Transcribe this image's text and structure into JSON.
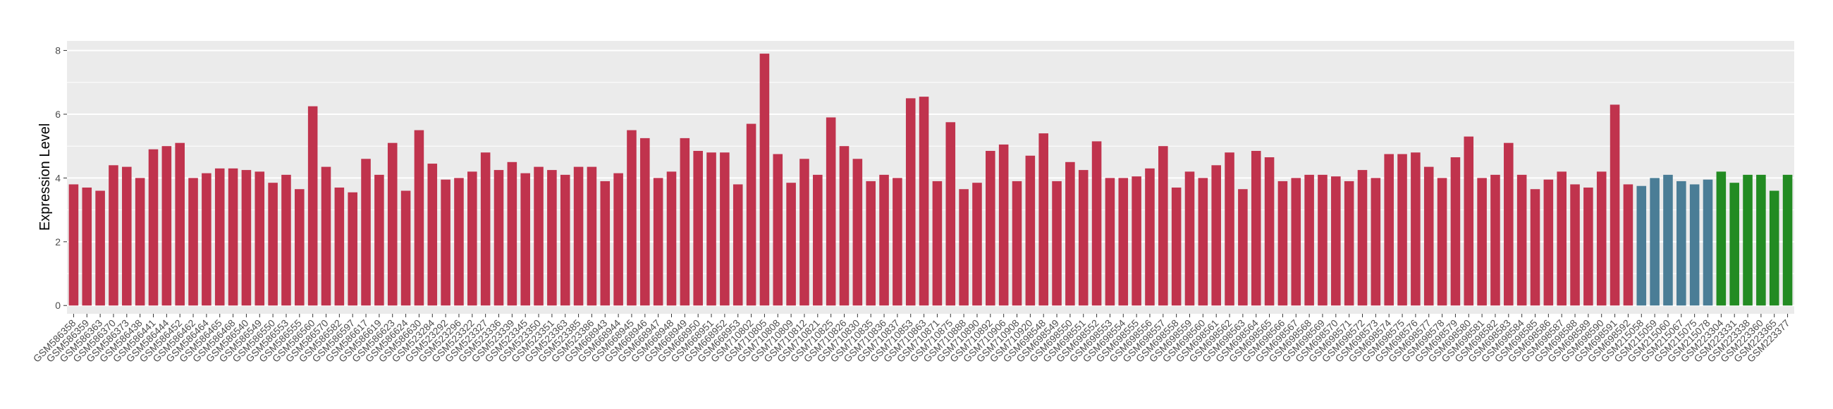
{
  "chart_data": {
    "type": "bar",
    "y_label": "Expression Level",
    "categories": [
      "GSM586358",
      "GSM586359",
      "GSM586363",
      "GSM586370",
      "GSM586373",
      "GSM586438",
      "GSM586441",
      "GSM586444",
      "GSM586452",
      "GSM586462",
      "GSM586464",
      "GSM586465",
      "GSM586468",
      "GSM586540",
      "GSM586549",
      "GSM586550",
      "GSM586553",
      "GSM586555",
      "GSM586560",
      "GSM586570",
      "GSM586582",
      "GSM586597",
      "GSM586617",
      "GSM586619",
      "GSM586623",
      "GSM586624",
      "GSM586630",
      "GSM523284",
      "GSM523292",
      "GSM523296",
      "GSM523322",
      "GSM523327",
      "GSM523336",
      "GSM523339",
      "GSM523345",
      "GSM523350",
      "GSM523351",
      "GSM523363",
      "GSM523385",
      "GSM523386",
      "GSM668943",
      "GSM668944",
      "GSM668945",
      "GSM668946",
      "GSM668947",
      "GSM668948",
      "GSM668949",
      "GSM668950",
      "GSM668951",
      "GSM668952",
      "GSM668953",
      "GSM710802",
      "GSM710805",
      "GSM710808",
      "GSM710809",
      "GSM710812",
      "GSM710821",
      "GSM710825",
      "GSM710826",
      "GSM710830",
      "GSM710835",
      "GSM710836",
      "GSM710837",
      "GSM710853",
      "GSM710863",
      "GSM710871",
      "GSM710875",
      "GSM710888",
      "GSM710890",
      "GSM710892",
      "GSM710906",
      "GSM710908",
      "GSM710920",
      "GSM698548",
      "GSM698549",
      "GSM698550",
      "GSM698551",
      "GSM698552",
      "GSM698553",
      "GSM698554",
      "GSM698555",
      "GSM698556",
      "GSM698557",
      "GSM698558",
      "GSM698559",
      "GSM698560",
      "GSM698561",
      "GSM698562",
      "GSM698563",
      "GSM698564",
      "GSM698565",
      "GSM698566",
      "GSM698567",
      "GSM698568",
      "GSM698569",
      "GSM698570",
      "GSM698571",
      "GSM698572",
      "GSM698573",
      "GSM698574",
      "GSM698575",
      "GSM698576",
      "GSM698577",
      "GSM698578",
      "GSM698579",
      "GSM698580",
      "GSM698581",
      "GSM698582",
      "GSM698583",
      "GSM698584",
      "GSM698585",
      "GSM698586",
      "GSM698587",
      "GSM698588",
      "GSM698589",
      "GSM698590",
      "GSM698591",
      "GSM698592",
      "GSM215058",
      "GSM215059",
      "GSM215060",
      "GSM215067",
      "GSM215075",
      "GSM215078",
      "GSM223304",
      "GSM223331",
      "GSM223338",
      "GSM223360",
      "GSM223365",
      "GSM223377"
    ],
    "values": [
      3.8,
      3.7,
      3.6,
      4.4,
      4.35,
      4.0,
      4.9,
      5.0,
      5.1,
      4.0,
      4.15,
      4.3,
      4.3,
      4.25,
      4.2,
      3.85,
      4.1,
      3.65,
      6.25,
      4.35,
      3.7,
      3.55,
      4.6,
      4.1,
      5.1,
      3.6,
      5.5,
      4.45,
      3.95,
      4.0,
      4.2,
      4.8,
      4.25,
      4.5,
      4.15,
      4.35,
      4.25,
      4.1,
      4.35,
      4.35,
      3.9,
      4.15,
      5.5,
      5.25,
      4.0,
      4.2,
      5.25,
      4.85,
      4.8,
      4.8,
      3.8,
      5.7,
      7.9,
      4.75,
      3.85,
      4.6,
      4.1,
      5.9,
      5.0,
      4.6,
      3.9,
      4.1,
      4.0,
      6.5,
      6.55,
      3.9,
      5.75,
      3.65,
      3.85,
      4.85,
      5.05,
      3.9,
      4.7,
      5.4,
      3.9,
      4.5,
      4.25,
      5.15,
      4.0,
      4.0,
      4.05,
      4.3,
      5.0,
      3.7,
      4.2,
      4.0,
      4.4,
      4.8,
      3.65,
      4.85,
      4.65,
      3.9,
      4.0,
      4.1,
      4.1,
      4.05,
      3.9,
      4.25,
      4.0,
      4.75,
      4.75,
      4.8,
      4.35,
      4.0,
      4.65,
      5.3,
      4.0,
      4.1,
      5.1,
      4.1,
      3.65,
      3.95,
      4.2,
      3.8,
      3.7,
      4.2,
      6.3,
      3.8,
      3.75,
      4.0,
      4.1,
      3.9,
      3.8,
      3.95,
      4.2,
      3.85,
      4.1,
      4.1,
      3.6,
      4.1
    ],
    "colors": [
      "#c0334d",
      "#c0334d",
      "#c0334d",
      "#c0334d",
      "#c0334d",
      "#c0334d",
      "#c0334d",
      "#c0334d",
      "#c0334d",
      "#c0334d",
      "#c0334d",
      "#c0334d",
      "#c0334d",
      "#c0334d",
      "#c0334d",
      "#c0334d",
      "#c0334d",
      "#c0334d",
      "#c0334d",
      "#c0334d",
      "#c0334d",
      "#c0334d",
      "#c0334d",
      "#c0334d",
      "#c0334d",
      "#c0334d",
      "#c0334d",
      "#c0334d",
      "#c0334d",
      "#c0334d",
      "#c0334d",
      "#c0334d",
      "#c0334d",
      "#c0334d",
      "#c0334d",
      "#c0334d",
      "#c0334d",
      "#c0334d",
      "#c0334d",
      "#c0334d",
      "#c0334d",
      "#c0334d",
      "#c0334d",
      "#c0334d",
      "#c0334d",
      "#c0334d",
      "#c0334d",
      "#c0334d",
      "#c0334d",
      "#c0334d",
      "#c0334d",
      "#c0334d",
      "#c0334d",
      "#c0334d",
      "#c0334d",
      "#c0334d",
      "#c0334d",
      "#c0334d",
      "#c0334d",
      "#c0334d",
      "#c0334d",
      "#c0334d",
      "#c0334d",
      "#c0334d",
      "#c0334d",
      "#c0334d",
      "#c0334d",
      "#c0334d",
      "#c0334d",
      "#c0334d",
      "#c0334d",
      "#c0334d",
      "#c0334d",
      "#c0334d",
      "#c0334d",
      "#c0334d",
      "#c0334d",
      "#c0334d",
      "#c0334d",
      "#c0334d",
      "#c0334d",
      "#c0334d",
      "#c0334d",
      "#c0334d",
      "#c0334d",
      "#c0334d",
      "#c0334d",
      "#c0334d",
      "#c0334d",
      "#c0334d",
      "#c0334d",
      "#c0334d",
      "#c0334d",
      "#c0334d",
      "#c0334d",
      "#c0334d",
      "#c0334d",
      "#c0334d",
      "#c0334d",
      "#c0334d",
      "#c0334d",
      "#c0334d",
      "#c0334d",
      "#c0334d",
      "#c0334d",
      "#c0334d",
      "#c0334d",
      "#c0334d",
      "#c0334d",
      "#c0334d",
      "#c0334d",
      "#c0334d",
      "#c0334d",
      "#c0334d",
      "#c0334d",
      "#c0334d",
      "#c0334d",
      "#c0334d",
      "#4a7d96",
      "#4a7d96",
      "#4a7d96",
      "#4a7d96",
      "#4a7d96",
      "#4a7d96",
      "#228b22",
      "#228b22",
      "#228b22",
      "#228b22",
      "#228b22",
      "#228b22"
    ],
    "ylim": [
      -0.26,
      8.3
    ],
    "yticks": [
      0,
      2,
      4,
      6,
      8
    ],
    "grid": true
  }
}
